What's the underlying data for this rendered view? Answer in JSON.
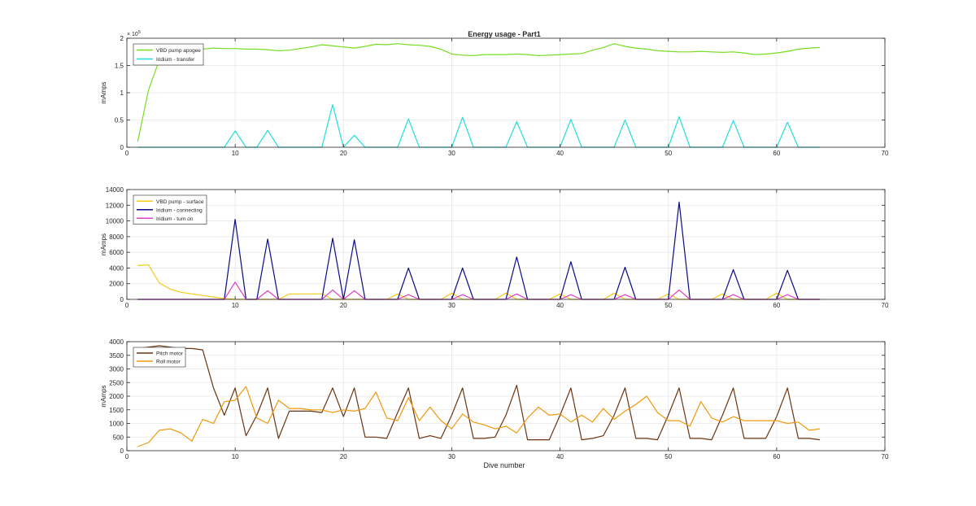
{
  "figure": {
    "title": "Energy usage - Part1",
    "xlabel": "Dive number"
  },
  "chart_data": [
    {
      "type": "line",
      "title": "Energy usage - Part1",
      "xlabel": "",
      "ylabel": "mAmps",
      "xlim": [
        0,
        70
      ],
      "ylim": [
        0,
        2
      ],
      "xticks": [
        0,
        10,
        20,
        30,
        40,
        50,
        60,
        70
      ],
      "yticks": [
        0,
        0.5,
        1,
        1.5,
        2
      ],
      "ytick_labels": [
        "0",
        "0.5",
        "1",
        "1.5",
        "2"
      ],
      "exponent_label": "× 10",
      "exponent_power": "5",
      "grid": true,
      "legend_position": "top-left",
      "series": [
        {
          "name": "VBD pump apogee",
          "color": "#77dd22",
          "x": [
            1,
            2,
            3,
            4,
            5,
            6,
            7,
            8,
            9,
            10,
            11,
            12,
            13,
            14,
            15,
            16,
            17,
            18,
            19,
            20,
            21,
            22,
            23,
            24,
            25,
            26,
            27,
            28,
            29,
            30,
            31,
            32,
            33,
            34,
            35,
            36,
            37,
            38,
            39,
            40,
            41,
            42,
            43,
            44,
            45,
            46,
            47,
            48,
            49,
            50,
            51,
            52,
            53,
            54,
            55,
            56,
            57,
            58,
            59,
            60,
            61,
            62,
            63,
            64
          ],
          "y": [
            0.1,
            1.05,
            1.6,
            1.72,
            1.76,
            1.78,
            1.8,
            1.82,
            1.81,
            1.81,
            1.8,
            1.8,
            1.79,
            1.77,
            1.78,
            1.81,
            1.84,
            1.88,
            1.86,
            1.84,
            1.82,
            1.85,
            1.89,
            1.88,
            1.9,
            1.88,
            1.87,
            1.85,
            1.8,
            1.71,
            1.69,
            1.68,
            1.7,
            1.7,
            1.7,
            1.71,
            1.7,
            1.68,
            1.69,
            1.7,
            1.71,
            1.72,
            1.78,
            1.83,
            1.9,
            1.85,
            1.82,
            1.8,
            1.77,
            1.76,
            1.75,
            1.75,
            1.76,
            1.75,
            1.74,
            1.75,
            1.73,
            1.7,
            1.71,
            1.73,
            1.76,
            1.8,
            1.82,
            1.83
          ]
        },
        {
          "name": "Iridium - transfer",
          "color": "#22dddd",
          "x": [
            1,
            2,
            3,
            4,
            5,
            6,
            7,
            8,
            9,
            10,
            11,
            12,
            13,
            14,
            15,
            16,
            17,
            18,
            19,
            20,
            21,
            22,
            23,
            24,
            25,
            26,
            27,
            28,
            29,
            30,
            31,
            32,
            33,
            34,
            35,
            36,
            37,
            38,
            39,
            40,
            41,
            42,
            43,
            44,
            45,
            46,
            47,
            48,
            49,
            50,
            51,
            52,
            53,
            54,
            55,
            56,
            57,
            58,
            59,
            60,
            61,
            62,
            63,
            64
          ],
          "y": [
            0,
            0,
            0,
            0,
            0,
            0,
            0,
            0,
            0,
            0.3,
            0,
            0,
            0.31,
            0,
            0,
            0,
            0,
            0,
            0.78,
            0,
            0.22,
            0,
            0,
            0,
            0,
            0.52,
            0,
            0,
            0,
            0,
            0.55,
            0,
            0,
            0,
            0,
            0.47,
            0,
            0,
            0,
            0,
            0.51,
            0,
            0,
            0,
            0,
            0.5,
            0,
            0,
            0,
            0,
            0.56,
            0,
            0,
            0,
            0,
            0.49,
            0,
            0,
            0,
            0,
            0.46,
            0,
            0,
            0
          ]
        }
      ]
    },
    {
      "type": "line",
      "title": "",
      "xlabel": "",
      "ylabel": "mAmps",
      "xlim": [
        0,
        70
      ],
      "ylim": [
        0,
        14000
      ],
      "xticks": [
        0,
        10,
        20,
        30,
        40,
        50,
        60,
        70
      ],
      "yticks": [
        0,
        2000,
        4000,
        6000,
        8000,
        10000,
        12000,
        14000
      ],
      "ytick_labels": [
        "0",
        "2000",
        "4000",
        "6000",
        "8000",
        "10000",
        "12000",
        "14000"
      ],
      "grid": true,
      "legend_position": "top-left",
      "series": [
        {
          "name": "VBD pump - surface",
          "color": "#f2cc1a",
          "x": [
            1,
            2,
            3,
            4,
            5,
            6,
            7,
            8,
            9,
            10,
            11,
            12,
            13,
            14,
            15,
            16,
            17,
            18,
            19,
            20,
            21,
            22,
            23,
            24,
            25,
            26,
            27,
            28,
            29,
            30,
            31,
            32,
            33,
            34,
            35,
            36,
            37,
            38,
            39,
            40,
            41,
            42,
            43,
            44,
            45,
            46,
            47,
            48,
            49,
            50,
            51,
            52,
            53,
            54,
            55,
            56,
            57,
            58,
            59,
            60,
            61,
            62,
            63,
            64
          ],
          "y": [
            4300,
            4400,
            2100,
            1300,
            900,
            700,
            500,
            300,
            100,
            0,
            0,
            0,
            0,
            0,
            700,
            700,
            700,
            700,
            0,
            0,
            0,
            0,
            0,
            0,
            700,
            0,
            0,
            0,
            0,
            800,
            0,
            0,
            0,
            0,
            800,
            0,
            0,
            0,
            0,
            700,
            0,
            0,
            0,
            0,
            800,
            0,
            0,
            0,
            0,
            700,
            0,
            0,
            0,
            0,
            700,
            0,
            0,
            0,
            0,
            800,
            0,
            0,
            0,
            0
          ]
        },
        {
          "name": "Iridium - connecting",
          "color": "#0a0a8a",
          "x": [
            1,
            2,
            3,
            4,
            5,
            6,
            7,
            8,
            9,
            10,
            11,
            12,
            13,
            14,
            15,
            16,
            17,
            18,
            19,
            20,
            21,
            22,
            23,
            24,
            25,
            26,
            27,
            28,
            29,
            30,
            31,
            32,
            33,
            34,
            35,
            36,
            37,
            38,
            39,
            40,
            41,
            42,
            43,
            44,
            45,
            46,
            47,
            48,
            49,
            50,
            51,
            52,
            53,
            54,
            55,
            56,
            57,
            58,
            59,
            60,
            61,
            62,
            63,
            64
          ],
          "y": [
            0,
            0,
            0,
            0,
            0,
            0,
            0,
            0,
            0,
            10200,
            0,
            0,
            7700,
            0,
            0,
            0,
            0,
            0,
            7800,
            0,
            7600,
            0,
            0,
            0,
            0,
            4000,
            0,
            0,
            0,
            0,
            4000,
            0,
            0,
            0,
            0,
            5400,
            0,
            0,
            0,
            0,
            4800,
            0,
            0,
            0,
            0,
            4100,
            0,
            0,
            0,
            0,
            12400,
            0,
            0,
            0,
            0,
            3800,
            0,
            0,
            0,
            0,
            3700,
            0,
            0,
            0
          ]
        },
        {
          "name": "Iridium - turn on",
          "color": "#e040c8",
          "x": [
            1,
            2,
            3,
            4,
            5,
            6,
            7,
            8,
            9,
            10,
            11,
            12,
            13,
            14,
            15,
            16,
            17,
            18,
            19,
            20,
            21,
            22,
            23,
            24,
            25,
            26,
            27,
            28,
            29,
            30,
            31,
            32,
            33,
            34,
            35,
            36,
            37,
            38,
            39,
            40,
            41,
            42,
            43,
            44,
            45,
            46,
            47,
            48,
            49,
            50,
            51,
            52,
            53,
            54,
            55,
            56,
            57,
            58,
            59,
            60,
            61,
            62,
            63,
            64
          ],
          "y": [
            0,
            0,
            0,
            0,
            0,
            0,
            0,
            0,
            0,
            2200,
            0,
            0,
            1100,
            0,
            0,
            0,
            0,
            0,
            1200,
            0,
            1100,
            0,
            0,
            0,
            0,
            600,
            0,
            0,
            0,
            0,
            600,
            0,
            0,
            0,
            0,
            700,
            0,
            0,
            0,
            0,
            600,
            0,
            0,
            0,
            0,
            600,
            0,
            0,
            0,
            0,
            1200,
            0,
            0,
            0,
            0,
            600,
            0,
            0,
            0,
            0,
            600,
            0,
            0,
            0
          ]
        }
      ]
    },
    {
      "type": "line",
      "title": "",
      "xlabel": "Dive number",
      "ylabel": "mAmps",
      "xlim": [
        0,
        70
      ],
      "ylim": [
        0,
        4000
      ],
      "xticks": [
        0,
        10,
        20,
        30,
        40,
        50,
        60,
        70
      ],
      "yticks": [
        0,
        500,
        1000,
        1500,
        2000,
        2500,
        3000,
        3500,
        4000
      ],
      "ytick_labels": [
        "0",
        "500",
        "1000",
        "1500",
        "2000",
        "2500",
        "3000",
        "3500",
        "4000"
      ],
      "grid": true,
      "legend_position": "top-left",
      "series": [
        {
          "name": "Pitch motor",
          "color": "#6b3410",
          "x": [
            1,
            2,
            3,
            4,
            5,
            6,
            7,
            8,
            9,
            10,
            11,
            12,
            13,
            14,
            15,
            16,
            17,
            18,
            19,
            20,
            21,
            22,
            23,
            24,
            25,
            26,
            27,
            28,
            29,
            30,
            31,
            32,
            33,
            34,
            35,
            36,
            37,
            38,
            39,
            40,
            41,
            42,
            43,
            44,
            45,
            46,
            47,
            48,
            49,
            50,
            51,
            52,
            53,
            54,
            55,
            56,
            57,
            58,
            59,
            60,
            61,
            62,
            63,
            64
          ],
          "y": [
            3750,
            3800,
            3850,
            3800,
            3750,
            3750,
            3700,
            2300,
            1300,
            2300,
            550,
            1300,
            2300,
            450,
            1450,
            1450,
            1450,
            1400,
            2300,
            1250,
            2300,
            500,
            500,
            450,
            1400,
            2300,
            450,
            550,
            450,
            1300,
            2300,
            450,
            450,
            500,
            1300,
            2400,
            400,
            400,
            400,
            1300,
            2300,
            400,
            450,
            550,
            1300,
            2300,
            450,
            450,
            400,
            1300,
            2300,
            450,
            450,
            400,
            1300,
            2300,
            450,
            450,
            450,
            1250,
            2300,
            450,
            450,
            400
          ]
        },
        {
          "name": "Roll motor",
          "color": "#f0980a",
          "x": [
            1,
            2,
            3,
            4,
            5,
            6,
            7,
            8,
            9,
            10,
            11,
            12,
            13,
            14,
            15,
            16,
            17,
            18,
            19,
            20,
            21,
            22,
            23,
            24,
            25,
            26,
            27,
            28,
            29,
            30,
            31,
            32,
            33,
            34,
            35,
            36,
            37,
            38,
            39,
            40,
            41,
            42,
            43,
            44,
            45,
            46,
            47,
            48,
            49,
            50,
            51,
            52,
            53,
            54,
            55,
            56,
            57,
            58,
            59,
            60,
            61,
            62,
            63,
            64
          ],
          "y": [
            150,
            300,
            750,
            800,
            650,
            350,
            1150,
            1000,
            1800,
            1850,
            2350,
            1200,
            1000,
            1850,
            1550,
            1550,
            1500,
            1500,
            1400,
            1500,
            1450,
            1550,
            2150,
            1200,
            1100,
            1950,
            1100,
            1600,
            1100,
            800,
            1350,
            1050,
            950,
            800,
            900,
            650,
            1200,
            1600,
            1300,
            1350,
            1050,
            1300,
            1050,
            1550,
            1150,
            1450,
            1700,
            2000,
            1400,
            1100,
            1100,
            900,
            1800,
            1200,
            1050,
            1250,
            1100,
            1100,
            1100,
            1100,
            1000,
            1050,
            750,
            800
          ]
        }
      ]
    }
  ]
}
